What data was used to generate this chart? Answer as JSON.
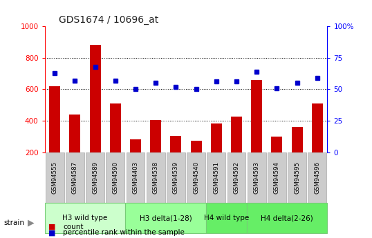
{
  "title": "GDS1674 / 10696_at",
  "samples": [
    "GSM94555",
    "GSM94587",
    "GSM94589",
    "GSM94590",
    "GSM94403",
    "GSM94538",
    "GSM94539",
    "GSM94540",
    "GSM94591",
    "GSM94592",
    "GSM94593",
    "GSM94594",
    "GSM94595",
    "GSM94596"
  ],
  "counts": [
    620,
    440,
    880,
    510,
    285,
    405,
    305,
    275,
    385,
    425,
    660,
    300,
    360,
    510
  ],
  "percentiles": [
    63,
    57,
    68,
    57,
    50,
    55,
    52,
    50,
    56,
    56,
    64,
    51,
    55,
    59
  ],
  "group_defs": [
    {
      "label": "H3 wild type",
      "start": 0,
      "end": 3,
      "color": "#ccffcc"
    },
    {
      "label": "H3 delta(1-28)",
      "start": 4,
      "end": 7,
      "color": "#99ff99"
    },
    {
      "label": "H4 wild type",
      "start": 8,
      "end": 9,
      "color": "#66ee66"
    },
    {
      "label": "H4 delta(2-26)",
      "start": 10,
      "end": 13,
      "color": "#66ee66"
    }
  ],
  "bar_color": "#cc0000",
  "dot_color": "#0000cc",
  "left_ylim": [
    200,
    1000
  ],
  "left_yticks": [
    200,
    400,
    600,
    800,
    1000
  ],
  "right_ylim": [
    0,
    100
  ],
  "right_yticks": [
    0,
    25,
    50,
    75,
    100
  ],
  "right_yticklabels": [
    "0",
    "25",
    "50",
    "75",
    "100%"
  ],
  "grid_values": [
    400,
    600,
    800
  ],
  "sample_box_color": "#cccccc",
  "sample_box_edge": "#aaaaaa",
  "strain_label": "strain"
}
